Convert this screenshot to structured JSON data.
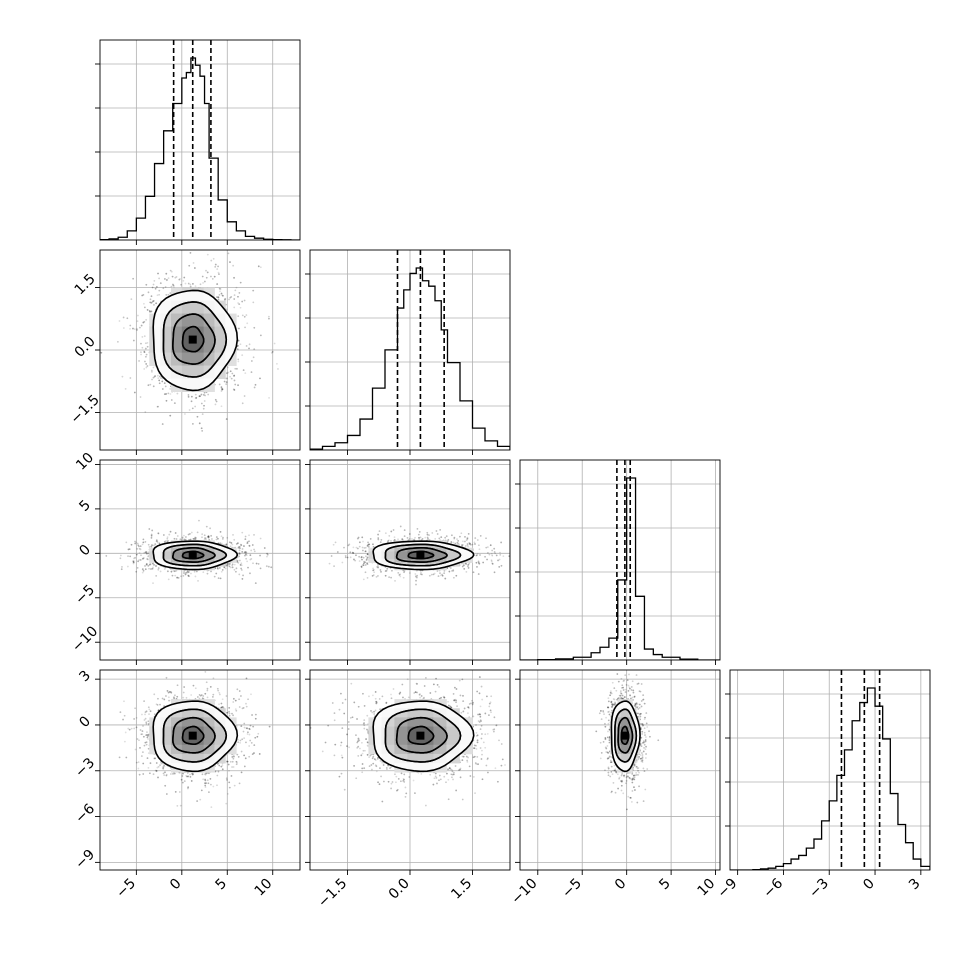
{
  "chart_data": {
    "type": "corner",
    "n_params": 4,
    "grid": true,
    "colors": {
      "line": "#000000",
      "grid": "#b0b0b0",
      "points": "#000000"
    },
    "params": [
      {
        "index": 0,
        "range": [
          -9,
          13
        ],
        "ticks": [
          -5,
          0,
          5,
          10
        ],
        "tick_labels": [
          "−5",
          "0",
          "5",
          "10"
        ],
        "mean": 1.2,
        "sigma": 2.3,
        "quantiles": [
          -0.9,
          1.2,
          3.2
        ]
      },
      {
        "index": 1,
        "range": [
          -2.4,
          2.4
        ],
        "ticks": [
          -1.5,
          0,
          1.5
        ],
        "tick_labels": [
          "−1.5",
          "0.0",
          "1.5"
        ],
        "mean": 0.25,
        "sigma": 0.6,
        "quantiles": [
          -0.3,
          0.25,
          0.82
        ]
      },
      {
        "index": 2,
        "range": [
          -12,
          10.5
        ],
        "ticks": [
          -10,
          -5,
          0,
          5,
          10
        ],
        "tick_labels": [
          "−10",
          "−5",
          "0",
          "5",
          "10"
        ],
        "mean": -0.2,
        "sigma": 0.8,
        "quantiles": [
          -1.1,
          -0.2,
          0.4
        ]
      },
      {
        "index": 3,
        "range": [
          -9.5,
          3.6
        ],
        "ticks": [
          -9,
          -6,
          -3,
          0,
          3
        ],
        "tick_labels": [
          "−9",
          "−6",
          "−3",
          "0",
          "3"
        ],
        "mean": -0.7,
        "sigma": 1.15,
        "quantiles": [
          -2.2,
          -0.7,
          0.3
        ]
      }
    ],
    "diagonal_histograms": [
      {
        "param": 0,
        "bins": [
          -9,
          -8,
          -7,
          -6,
          -5,
          -4,
          -3,
          -2,
          -1,
          0,
          0.5,
          1,
          1.5,
          2,
          2.5,
          3,
          4,
          5,
          6,
          7,
          8,
          9,
          10,
          11,
          12,
          13
        ],
        "counts": [
          0.002,
          0.006,
          0.015,
          0.05,
          0.12,
          0.24,
          0.42,
          0.6,
          0.75,
          0.89,
          0.92,
          1.0,
          0.96,
          0.9,
          0.75,
          0.45,
          0.22,
          0.1,
          0.05,
          0.02,
          0.01,
          0.004,
          0.002,
          0.001,
          0.0
        ]
      },
      {
        "param": 1,
        "bins": [
          -2.4,
          -2.1,
          -1.8,
          -1.5,
          -1.2,
          -0.9,
          -0.6,
          -0.3,
          -0.15,
          0.0,
          0.15,
          0.3,
          0.45,
          0.6,
          0.75,
          0.9,
          1.2,
          1.5,
          1.8,
          2.1,
          2.4
        ],
        "counts": [
          0.005,
          0.02,
          0.04,
          0.08,
          0.17,
          0.34,
          0.55,
          0.78,
          0.88,
          0.97,
          1.0,
          0.93,
          0.9,
          0.82,
          0.66,
          0.48,
          0.27,
          0.12,
          0.05,
          0.02
        ]
      },
      {
        "param": 2,
        "bins": [
          -12,
          -10,
          -8,
          -6,
          -4,
          -3,
          -2,
          -1,
          0,
          1,
          2,
          3,
          4,
          6,
          8,
          10.5
        ],
        "counts": [
          0.0,
          0.002,
          0.006,
          0.015,
          0.04,
          0.07,
          0.12,
          0.44,
          1.0,
          0.35,
          0.06,
          0.03,
          0.015,
          0.005,
          0.0
        ]
      },
      {
        "param": 3,
        "bins": [
          -9.5,
          -9,
          -8.5,
          -8,
          -7.5,
          -7,
          -6.5,
          -6,
          -5.5,
          -5,
          -4.5,
          -4,
          -3.5,
          -3,
          -2.5,
          -2,
          -1.5,
          -1,
          -0.5,
          0,
          0.5,
          1,
          1.5,
          2,
          2.5,
          3,
          3.6
        ],
        "counts": [
          0.0,
          0.0,
          0.0,
          0.002,
          0.006,
          0.01,
          0.02,
          0.035,
          0.06,
          0.08,
          0.12,
          0.17,
          0.27,
          0.38,
          0.52,
          0.66,
          0.82,
          0.92,
          1.0,
          0.9,
          0.72,
          0.42,
          0.25,
          0.15,
          0.06,
          0.02
        ]
      }
    ],
    "panels_2d": [
      {
        "x_param": 0,
        "y_param": 1,
        "center": [
          1.2,
          0.25
        ],
        "spread": [
          2.3,
          0.6
        ],
        "levels_sigma": [
          0.5,
          1.0,
          1.5,
          2.0
        ],
        "rho": 0.0
      },
      {
        "x_param": 0,
        "y_param": 2,
        "center": [
          1.2,
          -0.2
        ],
        "spread": [
          2.3,
          0.8
        ],
        "levels_sigma": [
          0.5,
          1.0,
          1.5,
          2.0
        ],
        "rho": 0.0
      },
      {
        "x_param": 1,
        "y_param": 2,
        "center": [
          0.25,
          -0.2
        ],
        "spread": [
          0.6,
          0.8
        ],
        "levels_sigma": [
          0.5,
          1.0,
          1.5,
          2.0
        ],
        "rho": 0.0
      },
      {
        "x_param": 0,
        "y_param": 3,
        "center": [
          1.2,
          -0.7
        ],
        "spread": [
          2.3,
          1.15
        ],
        "levels_sigma": [
          0.5,
          1.0,
          1.5,
          2.0
        ],
        "rho": 0.0
      },
      {
        "x_param": 1,
        "y_param": 3,
        "center": [
          0.25,
          -0.7
        ],
        "spread": [
          0.6,
          1.15
        ],
        "levels_sigma": [
          0.5,
          1.0,
          1.5,
          2.0
        ],
        "rho": 0.0
      },
      {
        "x_param": 2,
        "y_param": 3,
        "center": [
          -0.2,
          -0.7
        ],
        "spread": [
          0.8,
          1.15
        ],
        "levels_sigma": [
          0.5,
          1.0,
          1.5,
          2.0
        ],
        "rho": 0.0
      }
    ]
  }
}
